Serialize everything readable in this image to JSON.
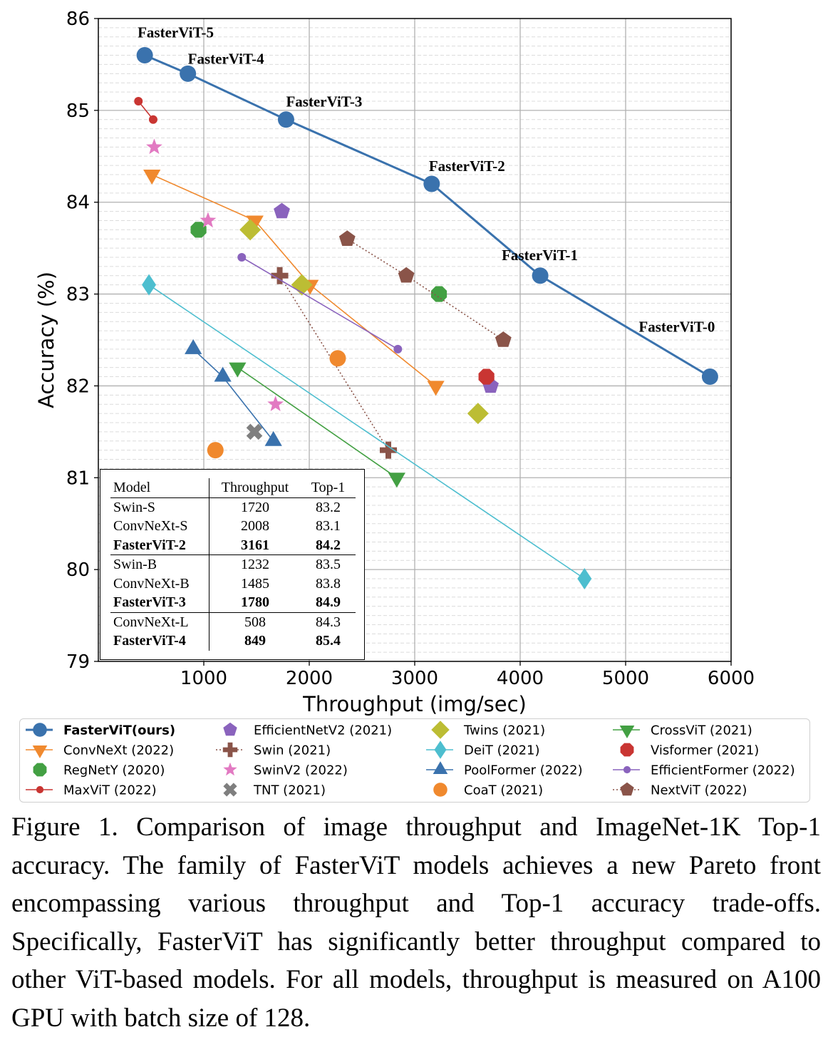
{
  "chart_data": {
    "type": "scatter",
    "xlabel": "Throughput (img/sec)",
    "ylabel": "Accuracy (%)",
    "xlim": [
      0,
      6000
    ],
    "ylim": [
      79,
      86
    ],
    "xticks": [
      "1000",
      "2000",
      "3000",
      "4000",
      "5000",
      "6000"
    ],
    "yticks": [
      "79",
      "80",
      "81",
      "82",
      "83",
      "84",
      "85",
      "86"
    ],
    "grid": true,
    "legend_placement": "bottom",
    "series": [
      {
        "name": "FasterViT(ours)",
        "color": "#3a72ad",
        "marker": "circle",
        "line": "solid",
        "bold": true,
        "points": [
          {
            "x": 5800,
            "y": 82.1,
            "label": "FasterViT-0"
          },
          {
            "x": 4190,
            "y": 83.2,
            "label": "FasterViT-1"
          },
          {
            "x": 3161,
            "y": 84.2,
            "label": "FasterViT-2"
          },
          {
            "x": 1780,
            "y": 84.9,
            "label": "FasterViT-3"
          },
          {
            "x": 849,
            "y": 85.4,
            "label": "FasterViT-4"
          },
          {
            "x": 440,
            "y": 85.6,
            "label": "FasterViT-5"
          }
        ]
      },
      {
        "name": "ConvNeXt (2022)",
        "color": "#f0892e",
        "marker": "triangle-down",
        "line": "solid",
        "points": [
          {
            "x": 508,
            "y": 84.3
          },
          {
            "x": 1485,
            "y": 83.8
          },
          {
            "x": 2008,
            "y": 83.1
          },
          {
            "x": 3200,
            "y": 82.0
          }
        ]
      },
      {
        "name": "RegNetY (2020)",
        "color": "#43a043",
        "marker": "octagon",
        "line": "none",
        "points": [
          {
            "x": 950,
            "y": 83.7
          },
          {
            "x": 3230,
            "y": 83.0
          }
        ]
      },
      {
        "name": "MaxViT (2022)",
        "color": "#c93532",
        "marker": "small-circle",
        "line": "solid",
        "points": [
          {
            "x": 380,
            "y": 85.1
          },
          {
            "x": 520,
            "y": 84.9
          }
        ]
      },
      {
        "name": "EfficientNetV2 (2021)",
        "color": "#8a63bd",
        "marker": "pentagon",
        "line": "none",
        "points": [
          {
            "x": 1740,
            "y": 83.9
          },
          {
            "x": 3720,
            "y": 82.0
          }
        ]
      },
      {
        "name": "Swin (2021)",
        "color": "#8a5449",
        "marker": "plus",
        "line": "dotted",
        "points": [
          {
            "x": 1720,
            "y": 83.2
          },
          {
            "x": 2750,
            "y": 81.3
          }
        ]
      },
      {
        "name": "SwinV2 (2022)",
        "color": "#e27ac2",
        "marker": "star",
        "line": "none",
        "points": [
          {
            "x": 530,
            "y": 84.6
          },
          {
            "x": 1040,
            "y": 83.8
          },
          {
            "x": 1680,
            "y": 81.8
          }
        ]
      },
      {
        "name": "TNT (2021)",
        "color": "#7f7f7f",
        "marker": "x",
        "line": "none",
        "points": [
          {
            "x": 1480,
            "y": 81.5
          }
        ]
      },
      {
        "name": "Twins (2021)",
        "color": "#bcbd34",
        "marker": "diamond",
        "line": "none",
        "points": [
          {
            "x": 1440,
            "y": 83.7
          },
          {
            "x": 1930,
            "y": 83.1
          },
          {
            "x": 3600,
            "y": 81.7
          }
        ]
      },
      {
        "name": "DeiT (2021)",
        "color": "#4dbecf",
        "marker": "thin-diamond",
        "line": "solid",
        "points": [
          {
            "x": 480,
            "y": 83.1
          },
          {
            "x": 4610,
            "y": 79.9
          }
        ]
      },
      {
        "name": "PoolFormer (2022)",
        "color": "#3a72ad",
        "marker": "triangle-up",
        "line": "solid",
        "points": [
          {
            "x": 900,
            "y": 82.4
          },
          {
            "x": 1180,
            "y": 82.1
          },
          {
            "x": 1660,
            "y": 81.4
          }
        ]
      },
      {
        "name": "CoaT (2021)",
        "color": "#f0892e",
        "marker": "circle",
        "line": "none",
        "points": [
          {
            "x": 2270,
            "y": 82.3
          },
          {
            "x": 1110,
            "y": 81.3
          }
        ]
      },
      {
        "name": "CrossViT (2021)",
        "color": "#43a043",
        "marker": "triangle-down",
        "line": "solid",
        "points": [
          {
            "x": 1320,
            "y": 82.2
          },
          {
            "x": 2830,
            "y": 81.0
          }
        ]
      },
      {
        "name": "Visformer (2021)",
        "color": "#c93532",
        "marker": "octagon",
        "line": "none",
        "points": [
          {
            "x": 3680,
            "y": 82.1
          }
        ]
      },
      {
        "name": "EfficientFormer (2022)",
        "color": "#8a63bd",
        "marker": "small-circle",
        "line": "solid",
        "points": [
          {
            "x": 1360,
            "y": 83.4
          },
          {
            "x": 2840,
            "y": 82.4
          }
        ]
      },
      {
        "name": "NextViT (2022)",
        "color": "#8a5449",
        "marker": "pentagon",
        "line": "dotted",
        "points": [
          {
            "x": 2360,
            "y": 83.6
          },
          {
            "x": 2920,
            "y": 83.2
          },
          {
            "x": 3840,
            "y": 82.5
          }
        ]
      }
    ]
  },
  "table": {
    "headers": [
      "Model",
      "Throughput",
      "Top-1"
    ],
    "rows": [
      [
        "Swin-S",
        "1720",
        "83.2"
      ],
      [
        "ConvNeXt-S",
        "2008",
        "83.1"
      ],
      [
        "FasterViT-2",
        "3161",
        "84.2"
      ],
      [
        "Swin-B",
        "1232",
        "83.5"
      ],
      [
        "ConvNeXt-B",
        "1485",
        "83.8"
      ],
      [
        "FasterViT-3",
        "1780",
        "84.9"
      ],
      [
        "ConvNeXt-L",
        "508",
        "84.3"
      ],
      [
        "FasterViT-4",
        "849",
        "85.4"
      ]
    ],
    "bold_rows": [
      2,
      5,
      7
    ],
    "separator_after_rows": [
      2,
      5
    ]
  },
  "caption": "Figure 1. Comparison of image throughput and ImageNet-1K Top-1 accuracy. The family of FasterViT models achieves a new Pareto front encompassing various throughput and Top-1 accuracy trade-offs.  Specifically, FasterViT has significantly better throughput compared to other ViT-based models. For all models, throughput is measured on A100 GPU with batch size of 128."
}
